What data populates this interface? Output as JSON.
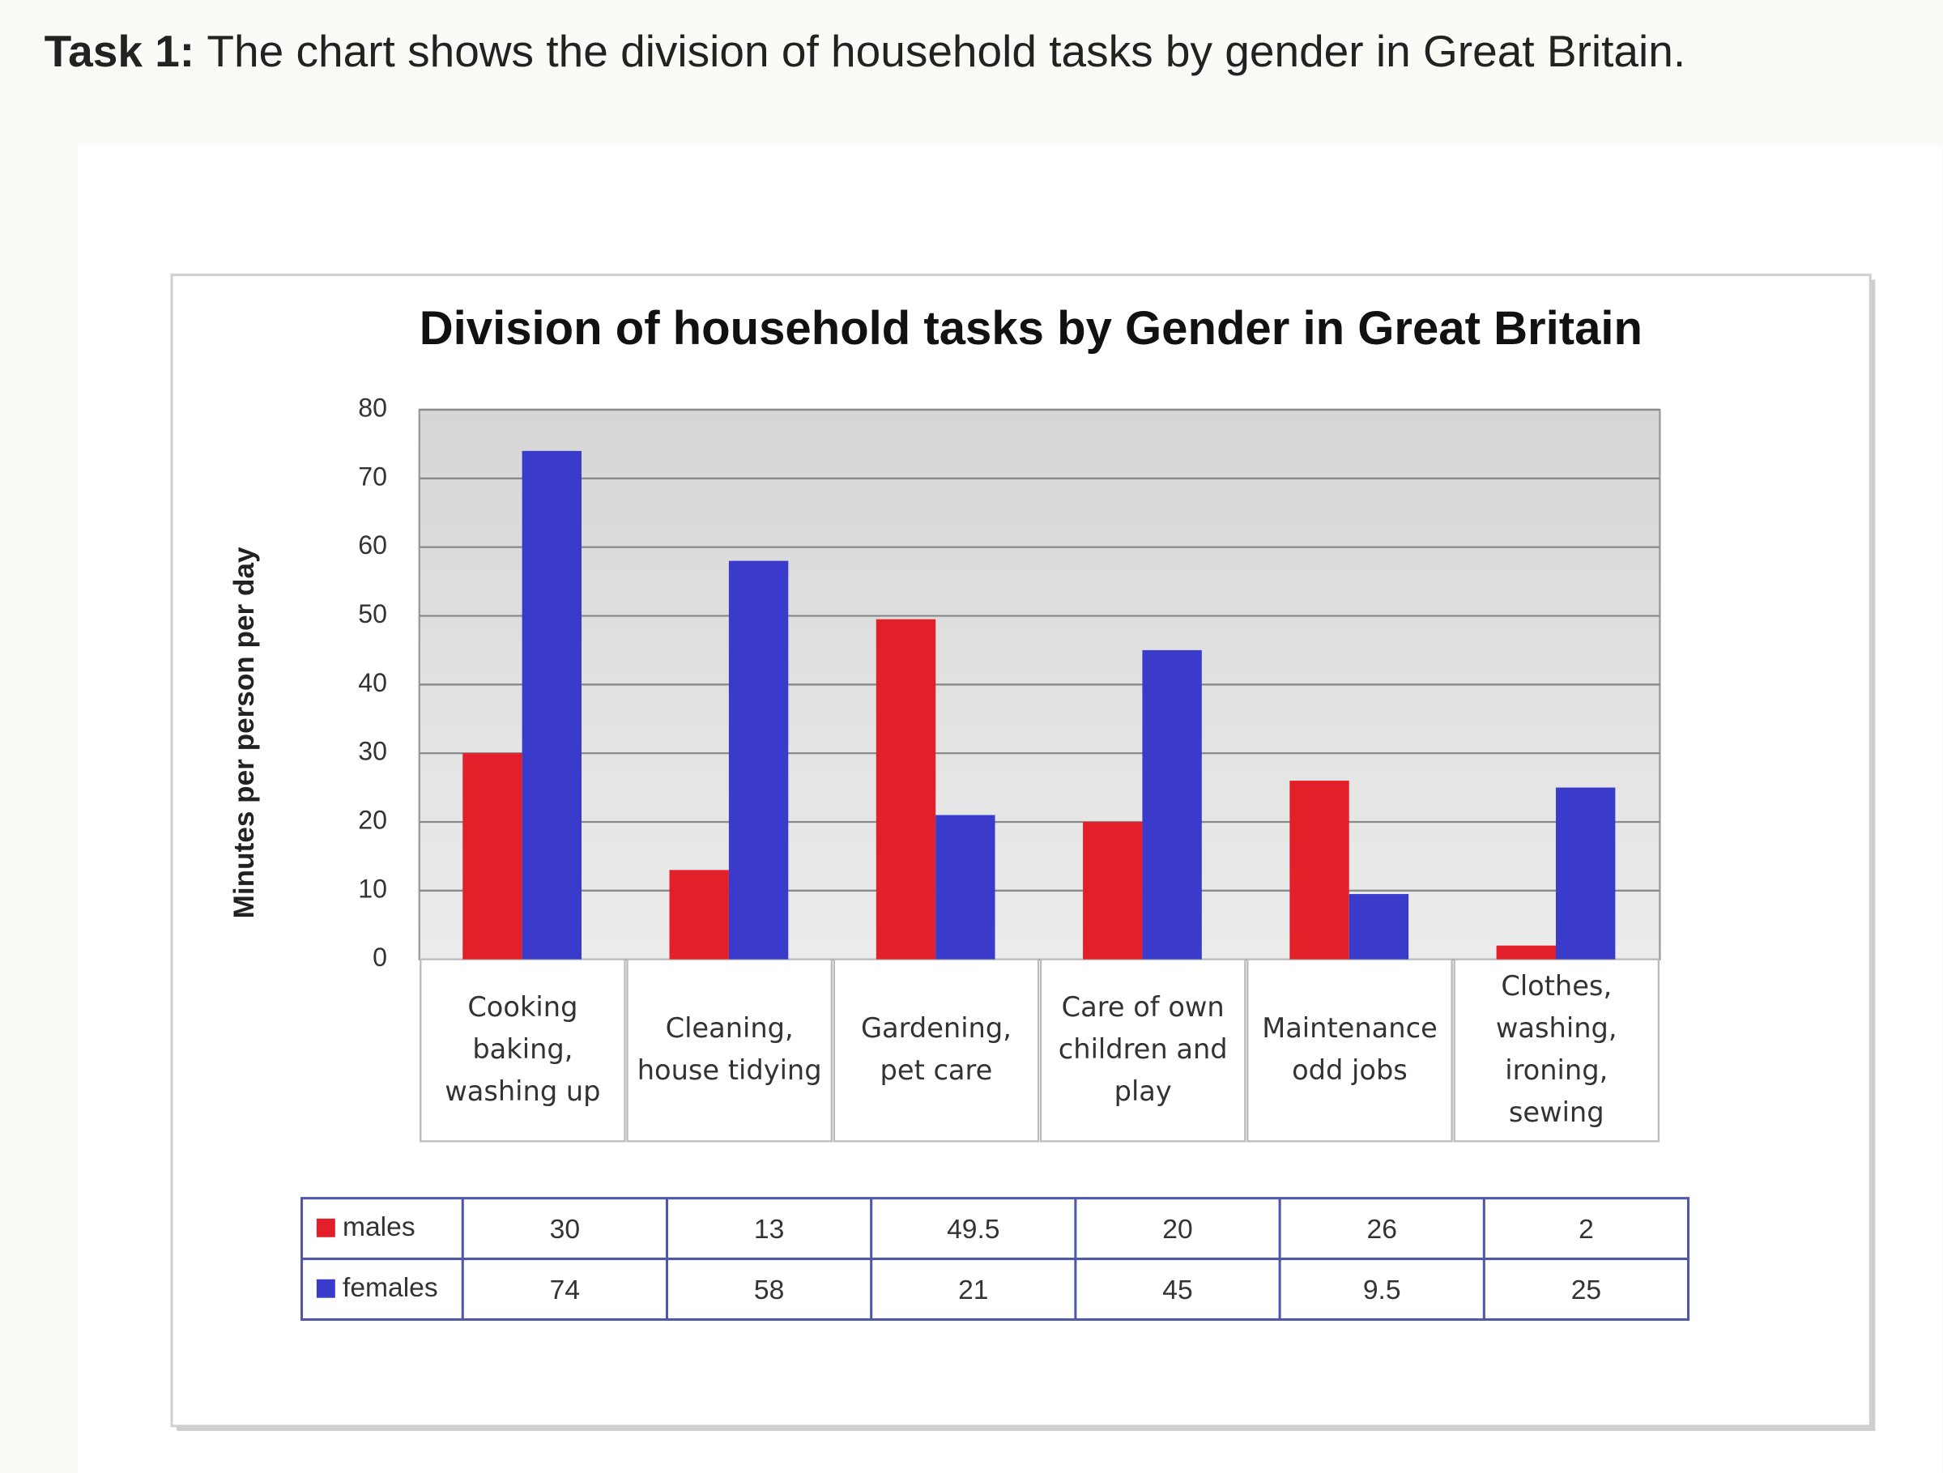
{
  "header": {
    "label": "Task 1:",
    "text": "The chart shows the division of household tasks by gender in Great Britain."
  },
  "chart_data": {
    "type": "bar",
    "title": "Division of household tasks by Gender in Great Britain",
    "y_label": "Minutes per person per day",
    "categories": [
      "Cooking baking, washing up",
      "Cleaning, house tidying",
      "Gardening, pet care",
      "Care of own children and play",
      "Maintenance odd jobs",
      "Clothes, washing, ironing, sewing"
    ],
    "series": [
      {
        "name": "males",
        "color": "#e3202a",
        "values": [
          30,
          13,
          49.5,
          20,
          26,
          2
        ]
      },
      {
        "name": "females",
        "color": "#3a3acb",
        "values": [
          74,
          58,
          21,
          45,
          9.5,
          25
        ]
      }
    ],
    "ylim": [
      0,
      80
    ],
    "yticks": [
      0,
      10,
      20,
      30,
      40,
      50,
      60,
      70,
      80
    ],
    "grid": true
  }
}
